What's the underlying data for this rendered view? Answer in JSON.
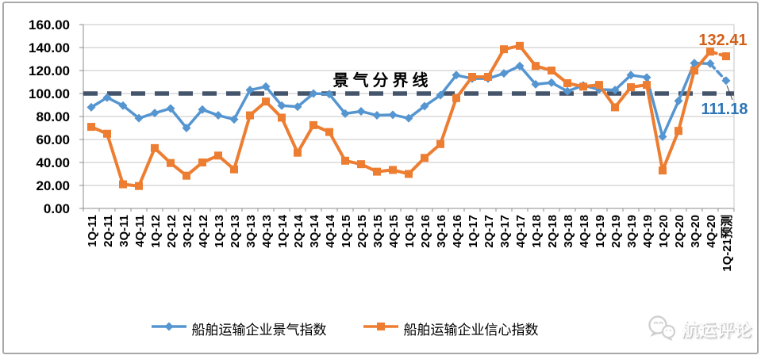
{
  "chart_data": {
    "type": "line",
    "title": "",
    "categories": [
      "1Q-11",
      "2Q-11",
      "3Q-11",
      "4Q-11",
      "1Q-12",
      "2Q-12",
      "3Q-12",
      "4Q-12",
      "1Q-13",
      "2Q-13",
      "3Q-13",
      "4Q-13",
      "1Q-14",
      "2Q-14",
      "3Q-14",
      "4Q-14",
      "1Q-15",
      "2Q-15",
      "3Q-15",
      "4Q-15",
      "1Q-16",
      "2Q-16",
      "3Q-16",
      "4Q-16",
      "1Q-17",
      "2Q-17",
      "3Q-17",
      "4Q-17",
      "1Q-18",
      "2Q-18",
      "3Q-18",
      "4Q-18",
      "1Q-19",
      "2Q-19",
      "3Q-19",
      "4Q-19",
      "1Q-20",
      "2Q-20",
      "3Q-20",
      "4Q-20",
      "1Q-21预测"
    ],
    "series": [
      {
        "name": "船舶运输企业景气指数",
        "color": "#5595D0",
        "marker": "diamond",
        "values": [
          88,
          96.5,
          89.5,
          78.5,
          83,
          87,
          70,
          86,
          81,
          77.5,
          103,
          106,
          89.5,
          88.5,
          100,
          99.5,
          82.5,
          84.5,
          81,
          81.5,
          78.5,
          89,
          98.5,
          116,
          113,
          113,
          117.5,
          124,
          108,
          109.5,
          102,
          107,
          103.5,
          103,
          116,
          114,
          62.5,
          93.5,
          126.5,
          126,
          111.18
        ],
        "forecast_last_segment": true,
        "end_label": "111.18",
        "end_label_color": "#2E75B6"
      },
      {
        "name": "船舶运输企业信心指数",
        "color": "#ED7D31",
        "marker": "square",
        "values": [
          71,
          65,
          21,
          19.5,
          52.5,
          39.5,
          28.5,
          40,
          46,
          34,
          81,
          93,
          79,
          48.5,
          72.5,
          66.5,
          41.5,
          38.5,
          32,
          33.5,
          30,
          44,
          56,
          96,
          114.5,
          114.5,
          138.5,
          141.5,
          124,
          120,
          109,
          106,
          107.5,
          88,
          105.5,
          107.5,
          33,
          67.5,
          120,
          136.5,
          132.41
        ],
        "forecast_last_segment": true,
        "end_label": "132.41",
        "end_label_color": "#D2601A"
      }
    ],
    "reference_line": {
      "value": 100,
      "label": "景气分界线",
      "color": "#44546A",
      "style": "dashed"
    },
    "y_axis": {
      "min": 0,
      "max": 160,
      "step": 20,
      "tick_labels": [
        "160.00",
        "140.00",
        "120.00",
        "100.00",
        "80.00",
        "60.00",
        "40.00",
        "20.00",
        "0.00"
      ]
    },
    "x_axis": {
      "label_rotation": -90
    },
    "grid": true,
    "legend_position": "bottom"
  },
  "watermark": {
    "text": "航运评论",
    "icon": "chat-bubbles-icon"
  },
  "colors": {
    "grid": "#C6C6C6",
    "axis": "#8C8C8C",
    "frame": "#A8A8A8",
    "text": "#000000",
    "leader": "#404040"
  }
}
